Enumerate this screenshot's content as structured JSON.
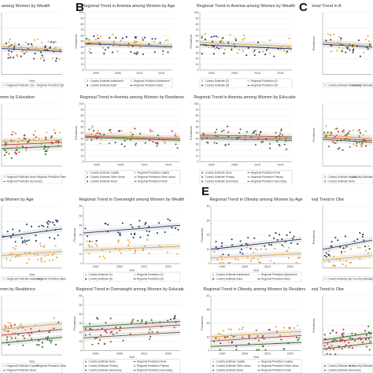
{
  "letters": [
    "B",
    "C",
    "E"
  ],
  "colors": {
    "group1": "#e8a33a",
    "group2": "#1f3b63",
    "group3": "#c23b3b",
    "group4": "#2e6b2e",
    "group5": "#7b5a2a",
    "band": "#d9d9d9"
  },
  "chart_data": [
    {
      "id": "p1",
      "title": "Regional Trend in Anemia among Women by Wealth",
      "type": "scatter",
      "x_ticks": [],
      "y_ticks": [],
      "xlabel": "Year",
      "legend": [
        "Regional Prediction Q1",
        "Regional Prediction Q5"
      ],
      "series_colors": [
        "group1",
        "group2"
      ],
      "trend": [
        [
          45,
          40
        ],
        [
          42,
          37
        ]
      ],
      "ylim": [
        0,
        100
      ],
      "n": 34
    },
    {
      "id": "p2",
      "title": "Regional Trend in Anemia among Women by Age",
      "type": "scatter",
      "x_ticks": [
        "2000",
        "2005",
        "2010",
        "2015"
      ],
      "y_ticks": [
        "0",
        "10",
        "20",
        "30",
        "40",
        "50",
        "60",
        "70",
        "80",
        "90",
        "100"
      ],
      "ylabel": "Prevalence",
      "legend": [
        "Country Estimate Adolescent",
        "Regional Prediction Adolescent",
        "Country Estimate Adult",
        "Regional Prediction Adult"
      ],
      "series_colors": [
        "group1",
        "group2"
      ],
      "trend": [
        [
          48,
          42
        ],
        [
          46,
          40
        ]
      ],
      "ylim": [
        0,
        100
      ],
      "n": 34
    },
    {
      "id": "p3",
      "title": "Regional Trend in Anemia among Women by Wealth",
      "type": "scatter",
      "x_ticks": [
        "2000",
        "2005",
        "2010",
        "2015"
      ],
      "y_ticks": [
        "0",
        "10",
        "20",
        "30",
        "40",
        "50",
        "60",
        "70",
        "80",
        "90",
        "100"
      ],
      "ylabel": "Prevalence",
      "legend": [
        "Country Estimate Q1",
        "Regional Prediction Q1",
        "Country Estimate Q5",
        "Regional Prediction Q5"
      ],
      "series_colors": [
        "group1",
        "group2"
      ],
      "trend": [
        [
          48,
          41
        ],
        [
          44,
          37
        ]
      ],
      "ylim": [
        0,
        100
      ],
      "n": 34
    },
    {
      "id": "p4",
      "title": "Regional Trend in A",
      "type": "scatter",
      "x_ticks": [],
      "y_ticks": [],
      "ylabel": "Prevalence",
      "legend": [
        "Country Estimate Adolescent",
        "Country Estimate Adult"
      ],
      "series_colors": [
        "group1",
        "group2"
      ],
      "trend": [
        [
          52,
          46
        ],
        [
          49,
          44
        ]
      ],
      "ylim": [
        0,
        100
      ],
      "n": 22
    },
    {
      "id": "p5",
      "title": "weight among Women by Education",
      "type": "scatter",
      "x_ticks": [],
      "y_ticks": [],
      "legend": [
        "Regional Prediction None",
        "Regional Prediction Primary",
        "Regional Prediction Secondary"
      ],
      "series_colors": [
        "group1",
        "group3",
        "group4"
      ],
      "trend": [
        [
          40,
          42
        ],
        [
          34,
          38
        ],
        [
          28,
          32
        ]
      ],
      "ylim": [
        0,
        100
      ],
      "n": 24
    },
    {
      "id": "p6",
      "title": "Regional Trend in Anemia among Women by Residence",
      "type": "scatter",
      "x_ticks": [
        "2000",
        "2005",
        "2010",
        "2015"
      ],
      "y_ticks": [
        "0",
        "10",
        "20",
        "30",
        "40",
        "50",
        "60",
        "70",
        "80",
        "90",
        "100"
      ],
      "ylabel": "Prevalence",
      "legend": [
        "Country Estimate Capital",
        "Regional Prediction Capital",
        "Country Estimate Other Urban",
        "Regional Prediction Other Urban",
        "Country Estimate Rural",
        "Regional Prediction Rural"
      ],
      "series_colors": [
        "group1",
        "group3",
        "group4"
      ],
      "trend": [
        [
          46,
          41
        ],
        [
          44,
          39
        ],
        [
          42,
          37
        ]
      ],
      "ylim": [
        0,
        100
      ],
      "n": 20
    },
    {
      "id": "p7",
      "title": "Regional Trend in Anemia among Women by Education",
      "type": "scatter",
      "x_ticks": [
        "2000",
        "2005",
        "2010",
        "2015"
      ],
      "y_ticks": [
        "0",
        "10",
        "20",
        "30",
        "40",
        "50",
        "60",
        "70",
        "80",
        "90",
        "100"
      ],
      "ylabel": "Prevalence",
      "legend": [
        "Country Estimate None",
        "Regional Prediction None",
        "Country Estimate Primary",
        "Regional Prediction Primary",
        "Country Estimate Secondary",
        "Regional Prediction Secondary"
      ],
      "series_colors": [
        "group5",
        "group3",
        "group4"
      ],
      "trend": [
        [
          46,
          43
        ],
        [
          43,
          40
        ],
        [
          40,
          37
        ]
      ],
      "ylim": [
        0,
        100
      ],
      "n": 20
    },
    {
      "id": "p8",
      "title": "",
      "type": "scatter",
      "x_ticks": [],
      "y_ticks": [],
      "ylabel": "Prevalence",
      "legend": [
        "Country Estimate Capital",
        "Country Estimate Other Urban",
        "Country Estimate Rural"
      ],
      "series_colors": [
        "group1",
        "group3",
        "group4"
      ],
      "trend": [
        [
          50,
          44
        ],
        [
          46,
          41
        ],
        [
          43,
          38
        ]
      ],
      "ylim": [
        0,
        100
      ],
      "n": 20
    },
    {
      "id": "p9",
      "title": "Overweight among Women by Age",
      "type": "scatter",
      "x_ticks": [],
      "y_ticks": [],
      "xlabel": "Year",
      "legend": [
        "Regional Prediction Adolescent",
        "Regional Prediction Adult"
      ],
      "series_colors": [
        "group1",
        "group2"
      ],
      "trend": [
        [
          12,
          16
        ],
        [
          30,
          38
        ]
      ],
      "ylim": [
        0,
        60
      ],
      "n": 36
    },
    {
      "id": "p10",
      "title": "Regional Trend in Overweight among Women by Wealth",
      "type": "scatter",
      "x_ticks": [
        "1990",
        "2000",
        "2010",
        "2020"
      ],
      "y_ticks": [
        "0",
        "10",
        "20",
        "30",
        "40",
        "50",
        "60"
      ],
      "ylabel": "Prevalence",
      "xlabel": "Year",
      "legend": [
        "Country Estimate Q1",
        "Regional Prediction Q1",
        "Country Estimate Q5",
        "Regional Prediction Q5"
      ],
      "series_colors": [
        "group1",
        "group2"
      ],
      "trend": [
        [
          14,
          18
        ],
        [
          32,
          40
        ]
      ],
      "ylim": [
        0,
        60
      ],
      "n": 36
    },
    {
      "id": "p11",
      "title": "Regional Trend in Obesity among Women by Age",
      "type": "scatter",
      "x_ticks": [
        "1990",
        "2000",
        "2010",
        "2020"
      ],
      "y_ticks": [
        "0",
        "10",
        "20",
        "30",
        "40"
      ],
      "ylabel": "Prevalence",
      "xlabel": "Year",
      "legend": [
        "Country Estimate Adolescent",
        "Regional Prediction Adolescent",
        "Country Estimate Adult",
        "Regional Prediction Adult"
      ],
      "series_colors": [
        "group1",
        "group2"
      ],
      "trend": [
        [
          4,
          7
        ],
        [
          10,
          17
        ]
      ],
      "ylim": [
        0,
        40
      ],
      "n": 36
    },
    {
      "id": "p12",
      "title": "Regional Trend in Obe",
      "type": "scatter",
      "x_ticks": [],
      "y_ticks": [],
      "ylabel": "Prevalence",
      "legend": [
        "Country Estimate Q1",
        "Country Estimate Q5"
      ],
      "series_colors": [
        "group1",
        "group2"
      ],
      "trend": [
        [
          5,
          8
        ],
        [
          12,
          18
        ]
      ],
      "ylim": [
        0,
        40
      ],
      "n": 24
    },
    {
      "id": "p13",
      "title": "weight among Women by Residence",
      "type": "scatter",
      "x_ticks": [],
      "y_ticks": [],
      "xlabel": "Year",
      "legend": [
        "Regional Prediction Capital",
        "Regional Prediction Other Urban",
        "Regional Prediction Rural"
      ],
      "series_colors": [
        "group1",
        "group3",
        "group4"
      ],
      "trend": [
        [
          26,
          32
        ],
        [
          20,
          26
        ],
        [
          12,
          18
        ]
      ],
      "ylim": [
        0,
        60
      ],
      "n": 20
    },
    {
      "id": "p14",
      "title": "Regional Trend in Overweight among Women by Education",
      "type": "scatter",
      "x_ticks": [
        "1990",
        "2000",
        "2010",
        "2020"
      ],
      "y_ticks": [
        "0",
        "10",
        "20",
        "30",
        "40",
        "50",
        "60"
      ],
      "ylabel": "Prevalence",
      "xlabel": "Year",
      "legend": [
        "Country Estimate None",
        "Regional Prediction None",
        "Country Estimate Primary",
        "Regional Prediction Primary",
        "Country Estimate Secondary",
        "Regional Prediction Secondary"
      ],
      "series_colors": [
        "group5",
        "group3",
        "group4"
      ],
      "trend": [
        [
          14,
          20
        ],
        [
          22,
          28
        ],
        [
          26,
          32
        ]
      ],
      "ylim": [
        0,
        60
      ],
      "n": 20
    },
    {
      "id": "p15",
      "title": "Regional Trend in Obesity among Women by Residence",
      "type": "scatter",
      "x_ticks": [
        "1990",
        "2000",
        "2010",
        "2020"
      ],
      "y_ticks": [
        "0",
        "10",
        "20",
        "30",
        "40"
      ],
      "ylabel": "Prevalence",
      "xlabel": "Year",
      "legend": [
        "Country Estimate Capital",
        "Regional Prediction Capital",
        "Country Estimate Other Urban",
        "Regional Prediction Other Urban",
        "Country Estimate Rural",
        "Regional Prediction Rural"
      ],
      "series_colors": [
        "group1",
        "group3",
        "group4"
      ],
      "trend": [
        [
          10,
          14
        ],
        [
          7,
          11
        ],
        [
          3,
          6
        ]
      ],
      "ylim": [
        0,
        40
      ],
      "n": 20
    },
    {
      "id": "p16",
      "title": "Regional Trend in Obe",
      "type": "scatter",
      "x_ticks": [],
      "y_ticks": [],
      "ylabel": "Prevalence",
      "legend": [
        "Country Estimate None",
        "Country Estimate Primary",
        "Country Estimate Secondary"
      ],
      "series_colors": [
        "group5",
        "group3",
        "group4"
      ],
      "trend": [
        [
          4,
          8
        ],
        [
          8,
          12
        ],
        [
          10,
          15
        ]
      ],
      "ylim": [
        0,
        40
      ],
      "n": 20
    }
  ]
}
